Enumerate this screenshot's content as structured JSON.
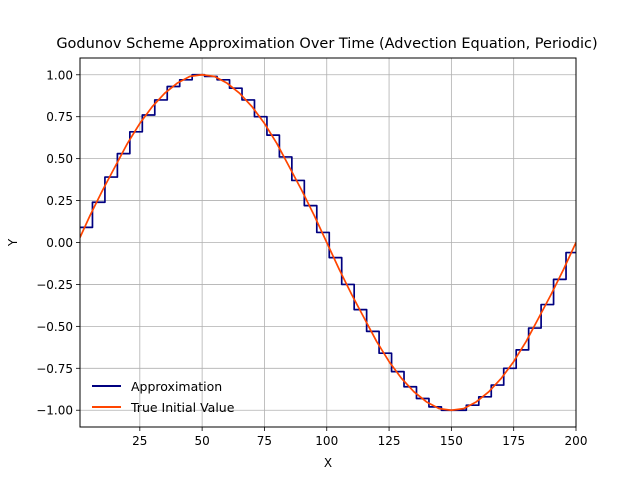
{
  "chart_data": {
    "type": "line",
    "title": "Godunov Scheme Approximation Over Time (Advection Equation, Periodic)",
    "xlabel": "X",
    "ylabel": "Y",
    "xlim": [
      1,
      200
    ],
    "ylim": [
      -1.1,
      1.1
    ],
    "xticks": [
      25,
      50,
      75,
      100,
      125,
      150,
      175,
      200
    ],
    "yticks": [
      -1.0,
      -0.75,
      -0.5,
      -0.25,
      0.0,
      0.25,
      0.5,
      0.75,
      1.0
    ],
    "xtick_labels": [
      "25",
      "50",
      "75",
      "100",
      "125",
      "150",
      "175",
      "200"
    ],
    "ytick_labels": [
      "−1.00",
      "−0.75",
      "−0.50",
      "−0.25",
      "0.00",
      "0.25",
      "0.50",
      "0.75",
      "1.00"
    ],
    "grid": true,
    "legend_position": "lower-left",
    "series": [
      {
        "name": "Approximation",
        "style": "step",
        "color": "#000080",
        "x": [
          1,
          6,
          11,
          16,
          21,
          26,
          31,
          36,
          41,
          46,
          51,
          56,
          61,
          66,
          71,
          76,
          81,
          86,
          91,
          96,
          101,
          106,
          111,
          116,
          121,
          126,
          131,
          136,
          141,
          146,
          151,
          156,
          161,
          166,
          171,
          176,
          181,
          186,
          191,
          196,
          200
        ],
        "y": [
          0.09,
          0.24,
          0.39,
          0.53,
          0.66,
          0.76,
          0.85,
          0.93,
          0.97,
          1.0,
          0.99,
          0.97,
          0.92,
          0.85,
          0.75,
          0.64,
          0.51,
          0.37,
          0.22,
          0.06,
          -0.09,
          -0.25,
          -0.4,
          -0.53,
          -0.66,
          -0.77,
          -0.86,
          -0.93,
          -0.98,
          -1.0,
          -1.0,
          -0.97,
          -0.92,
          -0.85,
          -0.75,
          -0.64,
          -0.51,
          -0.37,
          -0.22,
          -0.06,
          -0.06
        ]
      },
      {
        "name": "True Initial Value",
        "style": "line",
        "color": "#ff4500",
        "x": [
          1,
          5,
          10,
          15,
          20,
          25,
          30,
          35,
          40,
          45,
          50,
          55,
          60,
          65,
          70,
          75,
          80,
          85,
          90,
          95,
          100,
          105,
          110,
          115,
          120,
          125,
          130,
          135,
          140,
          145,
          150,
          155,
          160,
          165,
          170,
          175,
          180,
          185,
          190,
          195,
          200
        ],
        "y": [
          0.03,
          0.16,
          0.31,
          0.45,
          0.59,
          0.71,
          0.81,
          0.89,
          0.95,
          0.99,
          1.0,
          0.99,
          0.95,
          0.89,
          0.81,
          0.71,
          0.59,
          0.45,
          0.31,
          0.16,
          0.0,
          -0.16,
          -0.31,
          -0.45,
          -0.59,
          -0.71,
          -0.81,
          -0.89,
          -0.95,
          -0.99,
          -1.0,
          -0.99,
          -0.95,
          -0.89,
          -0.81,
          -0.71,
          -0.59,
          -0.45,
          -0.31,
          -0.16,
          0.0
        ]
      }
    ]
  }
}
